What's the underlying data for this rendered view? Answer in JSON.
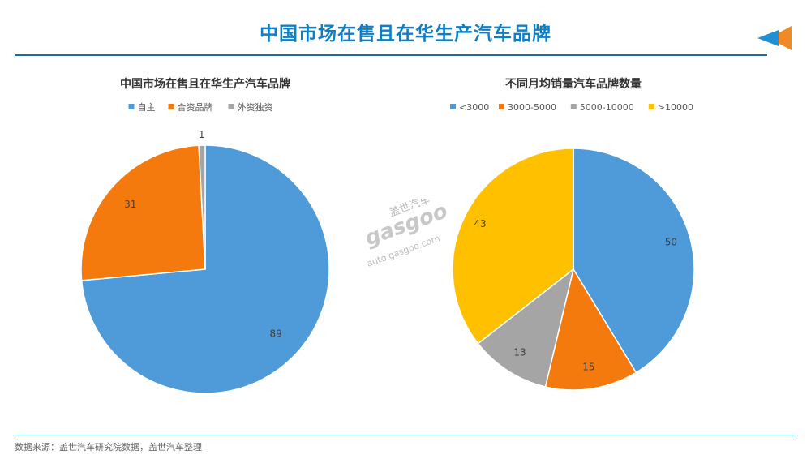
{
  "page": {
    "title": "中国市场在售且在华生产汽车品牌",
    "footer": "数据来源：盖世汽车研究院数据，盖世汽车整理",
    "watermark": {
      "chinese": "盖世汽车",
      "logo": "gasgoo",
      "url": "auto.gasgoo.com"
    },
    "accent_colors": {
      "title": "#0f7fc4",
      "rule": "#1b6f92",
      "arrow_orange": "#f08a28",
      "arrow_blue": "#1e90d6"
    }
  },
  "chart_data": [
    {
      "type": "pie",
      "title": "中国市场在售且在华生产汽车品牌",
      "legend_position": "top",
      "slices": [
        {
          "label": "自主",
          "value": 89,
          "color": "#4f9bd9"
        },
        {
          "label": "合资品牌",
          "value": 31,
          "color": "#f47a0e"
        },
        {
          "label": "外资独资",
          "value": 1,
          "color": "#a5a5a5"
        }
      ]
    },
    {
      "type": "pie",
      "title": "不同月均销量汽车品牌数量",
      "legend_position": "top",
      "slices": [
        {
          "label": "<3000",
          "value": 50,
          "color": "#4f9bd9"
        },
        {
          "label": "3000-5000",
          "value": 15,
          "color": "#f47a0e"
        },
        {
          "label": "5000-10000",
          "value": 13,
          "color": "#a5a5a5"
        },
        {
          "label": ">10000",
          "value": 43,
          "color": "#ffc000"
        }
      ]
    }
  ]
}
